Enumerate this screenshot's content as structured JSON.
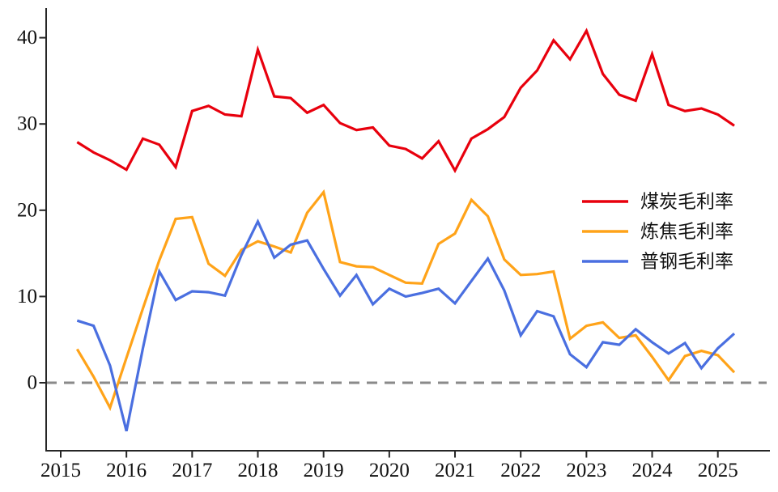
{
  "chart_data": {
    "type": "line",
    "title": "",
    "xlabel": "",
    "ylabel": "",
    "grid": false,
    "background": "#ffffff",
    "x": [
      2015.25,
      2015.5,
      2015.75,
      2016,
      2016.25,
      2016.5,
      2016.75,
      2017,
      2017.25,
      2017.5,
      2017.75,
      2018,
      2018.25,
      2018.5,
      2018.75,
      2019,
      2019.25,
      2019.5,
      2019.75,
      2020,
      2020.25,
      2020.5,
      2020.75,
      2021,
      2021.25,
      2021.5,
      2021.75,
      2022,
      2022.25,
      2022.5,
      2022.75,
      2023,
      2023.25,
      2023.5,
      2023.75,
      2024,
      2024.25,
      2024.5,
      2024.75,
      2025,
      2025.25
    ],
    "xticks": [
      2015,
      2016,
      2017,
      2018,
      2019,
      2020,
      2021,
      2022,
      2023,
      2024,
      2025
    ],
    "yticks": [
      0,
      10,
      20,
      30,
      40
    ],
    "xlim": [
      2014.78,
      2025.79
    ],
    "ylim": [
      -7.9,
      43.4
    ],
    "zero_line": {
      "value": 0,
      "style": "dashed",
      "color": "#8a8a8a"
    },
    "legend_position": "right-middle",
    "series": [
      {
        "name": "煤炭毛利率",
        "color": "#e8000d",
        "values": [
          27.9,
          26.7,
          25.8,
          24.7,
          28.3,
          27.6,
          25.0,
          31.5,
          32.1,
          31.1,
          30.9,
          38.6,
          33.2,
          33.0,
          31.3,
          32.2,
          30.1,
          29.3,
          29.6,
          27.5,
          27.1,
          26.0,
          28.0,
          24.6,
          28.3,
          29.4,
          30.8,
          34.2,
          36.2,
          39.7,
          37.5,
          40.8,
          35.8,
          33.4,
          32.7,
          38.1,
          32.2,
          31.5,
          31.8,
          31.1,
          29.8
        ]
      },
      {
        "name": "炼焦毛利率",
        "color": "#ffa319",
        "values": [
          3.9,
          0.7,
          -2.9,
          2.9,
          8.6,
          14.2,
          19.0,
          19.2,
          13.8,
          12.4,
          15.4,
          16.4,
          15.8,
          15.1,
          19.7,
          22.1,
          14.0,
          13.5,
          13.4,
          12.5,
          11.6,
          11.5,
          16.1,
          17.3,
          21.2,
          19.3,
          14.3,
          12.5,
          12.6,
          12.9,
          5.1,
          6.6,
          7.0,
          5.2,
          5.5,
          3.0,
          0.3,
          3.1,
          3.7,
          3.2,
          1.2
        ]
      },
      {
        "name": "普钢毛利率",
        "color": "#4a6fe0",
        "values": [
          7.2,
          6.6,
          2.0,
          -5.6,
          4.0,
          12.9,
          9.6,
          10.6,
          10.5,
          10.1,
          14.8,
          18.7,
          14.5,
          16.0,
          16.5,
          13.2,
          10.1,
          12.5,
          9.1,
          10.9,
          10.0,
          10.4,
          10.9,
          9.2,
          11.8,
          14.4,
          10.7,
          5.5,
          8.3,
          7.7,
          3.3,
          1.8,
          4.7,
          4.4,
          6.2,
          4.7,
          3.4,
          4.6,
          1.7,
          4.0,
          5.7
        ]
      }
    ]
  },
  "axis": {
    "spine_color": "#262626",
    "tick_text_color": "#111111",
    "tick_font_size": 25,
    "legend_font_size": 23
  }
}
